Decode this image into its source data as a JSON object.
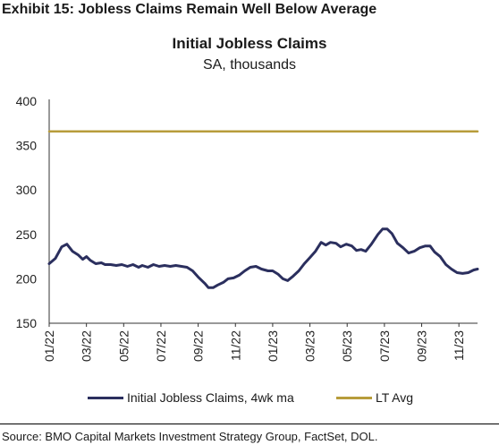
{
  "header": {
    "exhibit_title": "Exhibit 15: Jobless Claims Remain Well Below Average"
  },
  "footer": {
    "source": "Source: BMO Capital Markets Investment Strategy Group, FactSet, DOL."
  },
  "chart_data": {
    "type": "line",
    "title": "Initial Jobless Claims",
    "subtitle": "SA, thousands",
    "xlabel": "",
    "ylabel": "",
    "ylim": [
      150,
      400
    ],
    "yticks": [
      150,
      200,
      250,
      300,
      350,
      400
    ],
    "xlim": [
      0,
      23
    ],
    "xticks": [
      {
        "x": 0,
        "label": "01/22"
      },
      {
        "x": 2,
        "label": "03/22"
      },
      {
        "x": 4,
        "label": "05/22"
      },
      {
        "x": 6,
        "label": "07/22"
      },
      {
        "x": 8,
        "label": "09/22"
      },
      {
        "x": 10,
        "label": "11/22"
      },
      {
        "x": 12,
        "label": "01/23"
      },
      {
        "x": 14,
        "label": "03/23"
      },
      {
        "x": 16,
        "label": "05/23"
      },
      {
        "x": 18,
        "label": "07/23"
      },
      {
        "x": 20,
        "label": "09/23"
      },
      {
        "x": 22,
        "label": "11/23"
      }
    ],
    "grid": false,
    "legend_position": "bottom",
    "series": [
      {
        "name": "Initial Jobless Claims, 4wk ma",
        "color": "#2b2f5e",
        "points": [
          [
            0.0,
            217
          ],
          [
            0.33,
            223
          ],
          [
            0.67,
            236
          ],
          [
            0.95,
            239
          ],
          [
            1.25,
            231
          ],
          [
            1.55,
            227
          ],
          [
            1.8,
            222
          ],
          [
            2.0,
            225
          ],
          [
            2.2,
            221
          ],
          [
            2.5,
            217
          ],
          [
            2.8,
            218
          ],
          [
            3.0,
            216
          ],
          [
            3.3,
            216
          ],
          [
            3.6,
            215
          ],
          [
            3.9,
            216
          ],
          [
            4.2,
            214
          ],
          [
            4.5,
            216
          ],
          [
            4.8,
            213
          ],
          [
            5.0,
            215
          ],
          [
            5.3,
            213
          ],
          [
            5.6,
            216
          ],
          [
            5.9,
            214
          ],
          [
            6.2,
            215
          ],
          [
            6.5,
            214
          ],
          [
            6.8,
            215
          ],
          [
            7.1,
            214
          ],
          [
            7.4,
            213
          ],
          [
            7.7,
            209
          ],
          [
            8.0,
            202
          ],
          [
            8.35,
            195
          ],
          [
            8.55,
            190
          ],
          [
            8.8,
            190
          ],
          [
            9.05,
            193
          ],
          [
            9.35,
            196
          ],
          [
            9.6,
            200
          ],
          [
            9.9,
            201
          ],
          [
            10.2,
            204
          ],
          [
            10.5,
            209
          ],
          [
            10.8,
            213
          ],
          [
            11.1,
            214
          ],
          [
            11.4,
            211
          ],
          [
            11.75,
            209
          ],
          [
            12.0,
            209
          ],
          [
            12.3,
            205
          ],
          [
            12.55,
            200
          ],
          [
            12.8,
            198
          ],
          [
            13.1,
            203
          ],
          [
            13.4,
            209
          ],
          [
            13.7,
            217
          ],
          [
            14.0,
            224
          ],
          [
            14.3,
            231
          ],
          [
            14.6,
            241
          ],
          [
            14.85,
            238
          ],
          [
            15.1,
            241
          ],
          [
            15.4,
            240
          ],
          [
            15.65,
            236
          ],
          [
            15.95,
            239
          ],
          [
            16.25,
            237
          ],
          [
            16.5,
            232
          ],
          [
            16.75,
            233
          ],
          [
            17.0,
            231
          ],
          [
            17.3,
            239
          ],
          [
            17.65,
            250
          ],
          [
            17.9,
            256
          ],
          [
            18.15,
            256
          ],
          [
            18.4,
            251
          ],
          [
            18.7,
            240
          ],
          [
            19.0,
            235
          ],
          [
            19.3,
            229
          ],
          [
            19.6,
            231
          ],
          [
            19.9,
            235
          ],
          [
            20.2,
            237
          ],
          [
            20.45,
            237
          ],
          [
            20.7,
            230
          ],
          [
            21.0,
            225
          ],
          [
            21.3,
            216
          ],
          [
            21.6,
            211
          ],
          [
            21.9,
            207
          ],
          [
            22.2,
            206
          ],
          [
            22.5,
            207
          ],
          [
            22.8,
            210
          ],
          [
            23.0,
            211
          ]
        ]
      },
      {
        "name": "LT Avg",
        "color": "#b79c3b",
        "points": [
          [
            0,
            366
          ],
          [
            23,
            366
          ]
        ]
      }
    ]
  }
}
